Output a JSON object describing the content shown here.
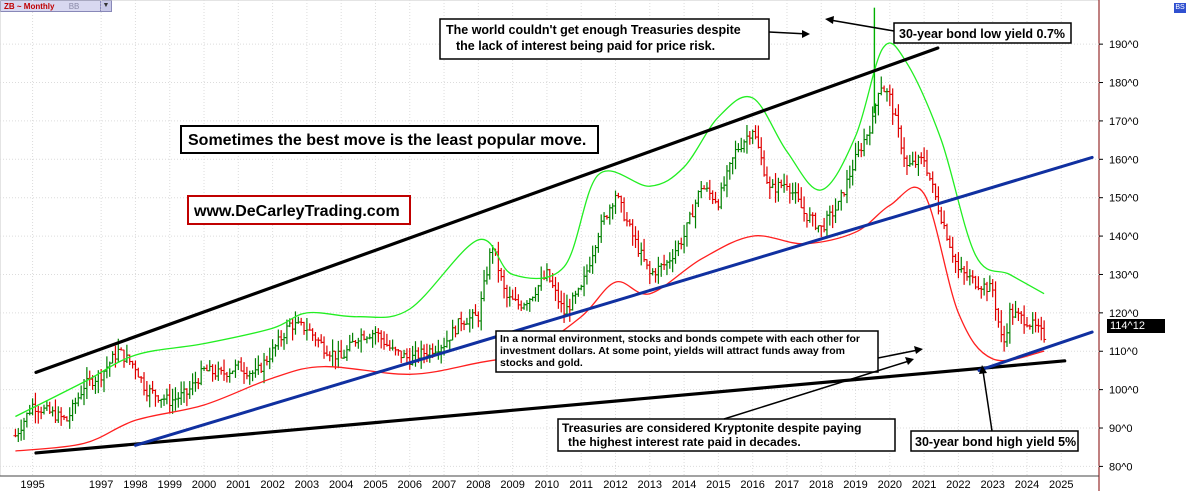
{
  "header": {
    "symbol": "ZB ~ Monthly",
    "symbol_sub": "BB",
    "badge": "BS"
  },
  "price_tag": "114^12",
  "annotations": {
    "headline": "Sometimes the best move is the least popular move.",
    "website": "www.DeCarleyTrading.com",
    "top_callout": [
      "The world couldn't get enough Treasuries despite",
      "the lack of interest being paid for price risk."
    ],
    "low_yield": "30-year bond low yield 0.7%",
    "normal_env": [
      "In a normal environment, stocks and bonds compete with each other for",
      "investment dollars. At some point, yields will attract funds away from",
      "stocks and gold."
    ],
    "kryptonite": [
      "Treasuries are considered Kryptonite despite paying",
      "the highest interest rate paid in decades."
    ],
    "high_yield": "30-year bond high yield 5%"
  },
  "chart_data": {
    "type": "line",
    "title": "ZB ~ Monthly",
    "xlabel": "",
    "ylabel": "",
    "x": [
      1995,
      1997,
      1998,
      1999,
      2000,
      2001,
      2002,
      2003,
      2004,
      2005,
      2006,
      2007,
      2008,
      2009,
      2010,
      2011,
      2012,
      2013,
      2014,
      2015,
      2016,
      2017,
      2018,
      2019,
      2020,
      2021,
      2022,
      2023,
      2024,
      2025
    ],
    "x_tick_labels": [
      "1995",
      "1997",
      "1998",
      "1999",
      "2000",
      "2001",
      "2002",
      "2003",
      "2004",
      "2005",
      "2006",
      "2007",
      "2008",
      "2009",
      "2010",
      "2011",
      "2012",
      "2013",
      "2014",
      "2015",
      "2016",
      "2017",
      "2018",
      "2019",
      "2020",
      "2021",
      "2022",
      "2023",
      "2024",
      "2025"
    ],
    "y_ticks": [
      80,
      90,
      100,
      110,
      120,
      130,
      140,
      150,
      160,
      170,
      180,
      190
    ],
    "y_tick_labels": [
      "80^0",
      "90^0",
      "100^0",
      "110^0",
      "120^0",
      "130^0",
      "140^0",
      "150^0",
      "160^0",
      "170^0",
      "180^0",
      "190^0"
    ],
    "ylim": [
      77.5,
      201.5
    ],
    "xlim": [
      1994.55,
      2026.6
    ],
    "series": [
      {
        "name": "Price (monthly close, approx.)",
        "color": "#008000",
        "x": [
          1995.0,
          1995.5,
          1996.0,
          1996.5,
          1997.0,
          1997.5,
          1998.0,
          1998.5,
          1998.8,
          1999.5,
          2000.0,
          2000.5,
          2001.0,
          2001.5,
          2002.0,
          2002.5,
          2003.0,
          2003.5,
          2004.0,
          2004.5,
          2005.0,
          2005.5,
          2006.0,
          2006.5,
          2007.0,
          2007.5,
          2008.0,
          2008.5,
          2008.9,
          2009.3,
          2009.7,
          2010.0,
          2010.5,
          2011.0,
          2011.5,
          2012.0,
          2012.5,
          2013.0,
          2013.5,
          2014.0,
          2014.5,
          2015.0,
          2015.5,
          2016.0,
          2016.5,
          2017.0,
          2017.5,
          2018.0,
          2018.5,
          2019.0,
          2019.5,
          2020.0,
          2020.2,
          2020.5,
          2021.0,
          2021.5,
          2022.0,
          2022.5,
          2023.0,
          2023.5,
          2023.8,
          2024.0,
          2024.5,
          2025.0
        ],
        "values": [
          88,
          96,
          94,
          92,
          101,
          104,
          110,
          106,
          100,
          97,
          99,
          105,
          104,
          106,
          104,
          110,
          117,
          116,
          111,
          108,
          114,
          115,
          110,
          108,
          110,
          112,
          118,
          119,
          138,
          124,
          122,
          124,
          130,
          120,
          126,
          141,
          151,
          140,
          130,
          133,
          140,
          153,
          149,
          162,
          168,
          152,
          154,
          146,
          142,
          148,
          160,
          170,
          180,
          176,
          158,
          160,
          145,
          131,
          128,
          126,
          111,
          120,
          118,
          114
        ]
      },
      {
        "name": "Upper Bollinger band",
        "color": "#22ee22",
        "x": [
          1995,
          1997,
          1998.5,
          2000.5,
          2002.5,
          2003.5,
          2005,
          2006.5,
          2008.5,
          2009.5,
          2011,
          2012,
          2013.5,
          2014.5,
          2015.5,
          2016.5,
          2017.5,
          2018.5,
          2019.5,
          2020.3,
          2021,
          2022,
          2023,
          2024,
          2025
        ],
        "values": [
          93,
          102,
          109,
          112,
          116,
          120,
          119,
          121,
          139,
          130,
          132,
          156,
          153,
          158,
          171,
          176,
          162,
          152,
          166,
          189,
          185,
          165,
          135,
          130,
          125
        ]
      },
      {
        "name": "Lower Bollinger band",
        "color": "#ff2020",
        "x": [
          1995,
          1997,
          1998.5,
          2000.5,
          2002.5,
          2004,
          2006.5,
          2008.5,
          2010,
          2011.5,
          2012.5,
          2013.5,
          2015,
          2016.5,
          2018,
          2019.5,
          2020.5,
          2021.5,
          2022.5,
          2023.5,
          2025
        ],
        "values": [
          84,
          86,
          92,
          96,
          103,
          106,
          104,
          107,
          110,
          119,
          128,
          125,
          134,
          140,
          138,
          141,
          148,
          151,
          120,
          108,
          110
        ]
      }
    ],
    "trendlines": [
      {
        "name": "upper channel line",
        "color": "#000000",
        "from": [
          1995.6,
          104.5
        ],
        "to": [
          2021.9,
          189
        ]
      },
      {
        "name": "lower support line",
        "color": "#000000",
        "from": [
          1995.6,
          83.5
        ],
        "to": [
          2025.6,
          107.5
        ]
      },
      {
        "name": "blue trend line",
        "color": "#1030a0",
        "from": [
          1998.5,
          85.5
        ],
        "to": [
          2026.4,
          160.5
        ]
      },
      {
        "name": "blue recent trend line",
        "color": "#1030a0",
        "from": [
          2023.1,
          105
        ]
      },
      {
        "name": "blue recent trend line end",
        "color": "#1030a0",
        "to": [
          2026.4,
          115
        ]
      }
    ]
  }
}
